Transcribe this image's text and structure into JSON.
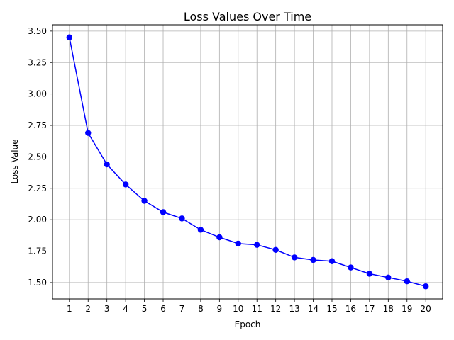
{
  "chart_data": {
    "type": "line",
    "title": "Loss Values Over Time",
    "xlabel": "Epoch",
    "ylabel": "Loss Value",
    "x": [
      1,
      2,
      3,
      4,
      5,
      6,
      7,
      8,
      9,
      10,
      11,
      12,
      13,
      14,
      15,
      16,
      17,
      18,
      19,
      20
    ],
    "x_ticks": [
      "1",
      "2",
      "3",
      "4",
      "5",
      "6",
      "7",
      "8",
      "9",
      "10",
      "11",
      "12",
      "13",
      "14",
      "15",
      "16",
      "17",
      "18",
      "19",
      "20"
    ],
    "series": [
      {
        "values": [
          3.45,
          2.69,
          2.44,
          2.28,
          2.15,
          2.06,
          2.01,
          1.92,
          1.86,
          1.81,
          1.8,
          1.76,
          1.7,
          1.68,
          1.67,
          1.62,
          1.57,
          1.54,
          1.51,
          1.47
        ],
        "color": "#0000ff",
        "marker": "circle"
      }
    ],
    "y_ticks": [
      "1.50",
      "1.75",
      "2.00",
      "2.25",
      "2.50",
      "2.75",
      "3.00",
      "3.25",
      "3.50"
    ],
    "xlim": [
      0.1,
      20.9
    ],
    "ylim": [
      1.37,
      3.55
    ],
    "grid": true
  }
}
